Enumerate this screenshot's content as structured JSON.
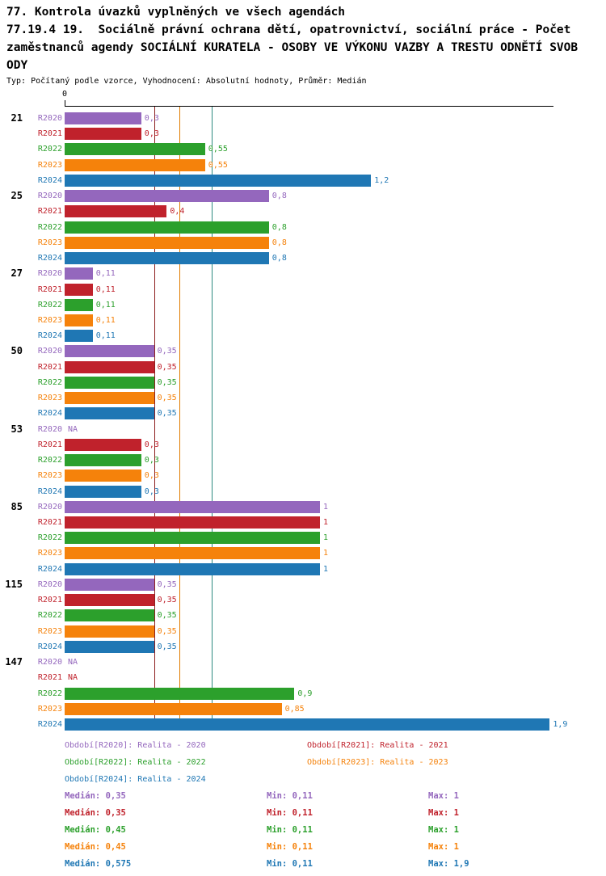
{
  "header": {
    "title_lines": [
      "77. Kontrola úvazků vyplněných ve všech agendách",
      "77.19.4 19.  Sociálně právní ochrana dětí, opatrovnictví, sociální práce - Počet",
      "zaměstnanců agendy SOCIÁLNÍ KURATELA - OSOBY VE VÝKONU VAZBY A TRESTU ODNĚTÍ SVOB",
      "ODY"
    ],
    "subtitle": "Typ: Počítaný podle vzorce, Vyhodnocení: Absolutní hodnoty, Průměr: Medián"
  },
  "chart_data": {
    "type": "bar",
    "orientation": "horizontal",
    "value_axis": {
      "origin_label": "0",
      "min": 0,
      "max": 1.9,
      "grid": false
    },
    "series": [
      {
        "id": "R2020",
        "label": "R2020",
        "color": "#9467bd"
      },
      {
        "id": "R2021",
        "label": "R2021",
        "color": "#c0222c"
      },
      {
        "id": "R2022",
        "label": "R2022",
        "color": "#2ca02c"
      },
      {
        "id": "R2023",
        "label": "R2023",
        "color": "#f5820b"
      },
      {
        "id": "R2024",
        "label": "R2024",
        "color": "#1f77b4"
      }
    ],
    "groups": [
      {
        "label": "21",
        "values": [
          0.3,
          0.3,
          0.55,
          0.55,
          1.2
        ],
        "display": [
          "0,3",
          "0,3",
          "0,55",
          "0,55",
          "1,2"
        ]
      },
      {
        "label": "25",
        "values": [
          0.8,
          0.4,
          0.8,
          0.8,
          0.8
        ],
        "display": [
          "0,8",
          "0,4",
          "0,8",
          "0,8",
          "0,8"
        ]
      },
      {
        "label": "27",
        "values": [
          0.11,
          0.11,
          0.11,
          0.11,
          0.11
        ],
        "display": [
          "0,11",
          "0,11",
          "0,11",
          "0,11",
          "0,11"
        ]
      },
      {
        "label": "50",
        "values": [
          0.35,
          0.35,
          0.35,
          0.35,
          0.35
        ],
        "display": [
          "0,35",
          "0,35",
          "0,35",
          "0,35",
          "0,35"
        ]
      },
      {
        "label": "53",
        "values": [
          null,
          0.3,
          0.3,
          0.3,
          0.3
        ],
        "display": [
          "NA",
          "0,3",
          "0,3",
          "0,3",
          "0,3"
        ]
      },
      {
        "label": "85",
        "values": [
          1,
          1,
          1,
          1,
          1
        ],
        "display": [
          "1",
          "1",
          "1",
          "1",
          "1"
        ]
      },
      {
        "label": "115",
        "values": [
          0.35,
          0.35,
          0.35,
          0.35,
          0.35
        ],
        "display": [
          "0,35",
          "0,35",
          "0,35",
          "0,35",
          "0,35"
        ]
      },
      {
        "label": "147",
        "values": [
          null,
          null,
          0.9,
          0.85,
          1.9
        ],
        "display": [
          "NA",
          "NA",
          "0,9",
          "0,85",
          "1,9"
        ]
      }
    ],
    "reference_lines": [
      {
        "value": 0.35,
        "color": "#8e1f1f"
      },
      {
        "value": 0.45,
        "color": "#e07b00"
      },
      {
        "value": 0.575,
        "color": "#2e8b80"
      }
    ],
    "legend": [
      {
        "label": "Období[R2020]: Realita - 2020",
        "color": "#9467bd"
      },
      {
        "label": "Období[R2021]: Realita - 2021",
        "color": "#c0222c"
      },
      {
        "label": "Období[R2022]: Realita - 2022",
        "color": "#2ca02c"
      },
      {
        "label": "Období[R2023]: Realita - 2023",
        "color": "#f5820b"
      },
      {
        "label": "Období[R2024]: Realita - 2024",
        "color": "#1f77b4"
      }
    ],
    "stats": [
      {
        "median": "Medián: 0,35",
        "min": "Min: 0,11",
        "max": "Max: 1",
        "color": "#9467bd"
      },
      {
        "median": "Medián: 0,35",
        "min": "Min: 0,11",
        "max": "Max: 1",
        "color": "#c0222c"
      },
      {
        "median": "Medián: 0,45",
        "min": "Min: 0,11",
        "max": "Max: 1",
        "color": "#2ca02c"
      },
      {
        "median": "Medián: 0,45",
        "min": "Min: 0,11",
        "max": "Max: 1",
        "color": "#f5820b"
      },
      {
        "median": "Medián: 0,575",
        "min": "Min: 0,11",
        "max": "Max: 1,9",
        "color": "#1f77b4"
      }
    ]
  }
}
